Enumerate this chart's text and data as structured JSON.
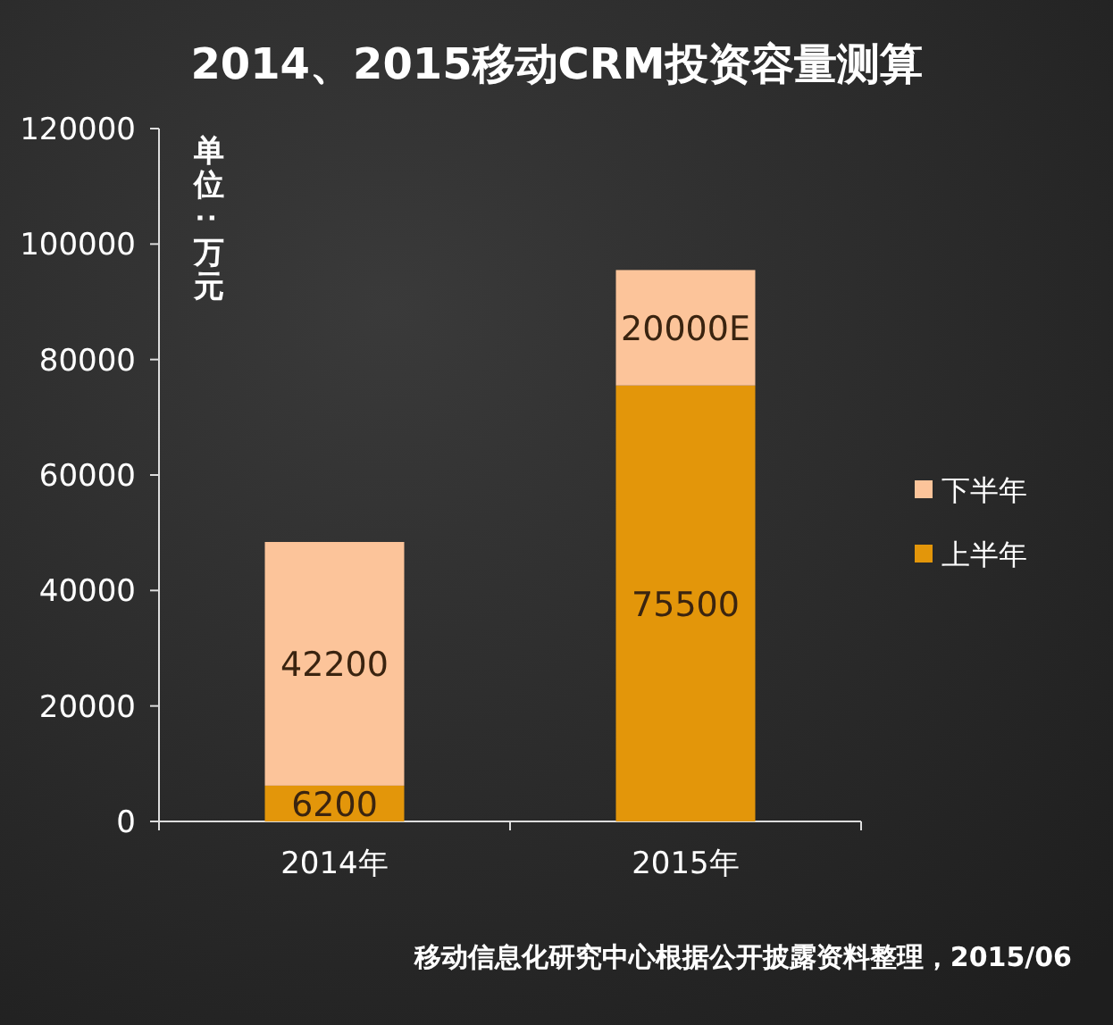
{
  "chart_data": {
    "type": "bar",
    "title": "2014、2015移动CRM投资容量测算",
    "ylabel": "单位：万元",
    "categories": [
      "2014年",
      "2015年"
    ],
    "stacked": true,
    "series": [
      {
        "name": "上半年",
        "color": "#e3960a",
        "values": [
          6200,
          75500
        ],
        "value_labels": [
          "6200",
          "75500"
        ]
      },
      {
        "name": "下半年",
        "color": "#fcc49a",
        "values": [
          42200,
          20000
        ],
        "value_labels": [
          "42200",
          "20000E"
        ]
      }
    ],
    "ylim": [
      0,
      120000
    ],
    "yticks": [
      0,
      20000,
      40000,
      60000,
      80000,
      100000,
      120000
    ],
    "legend": "right",
    "annotations": [
      "移动信息化研究中心根据公开披露资料整理，2015/06"
    ]
  }
}
